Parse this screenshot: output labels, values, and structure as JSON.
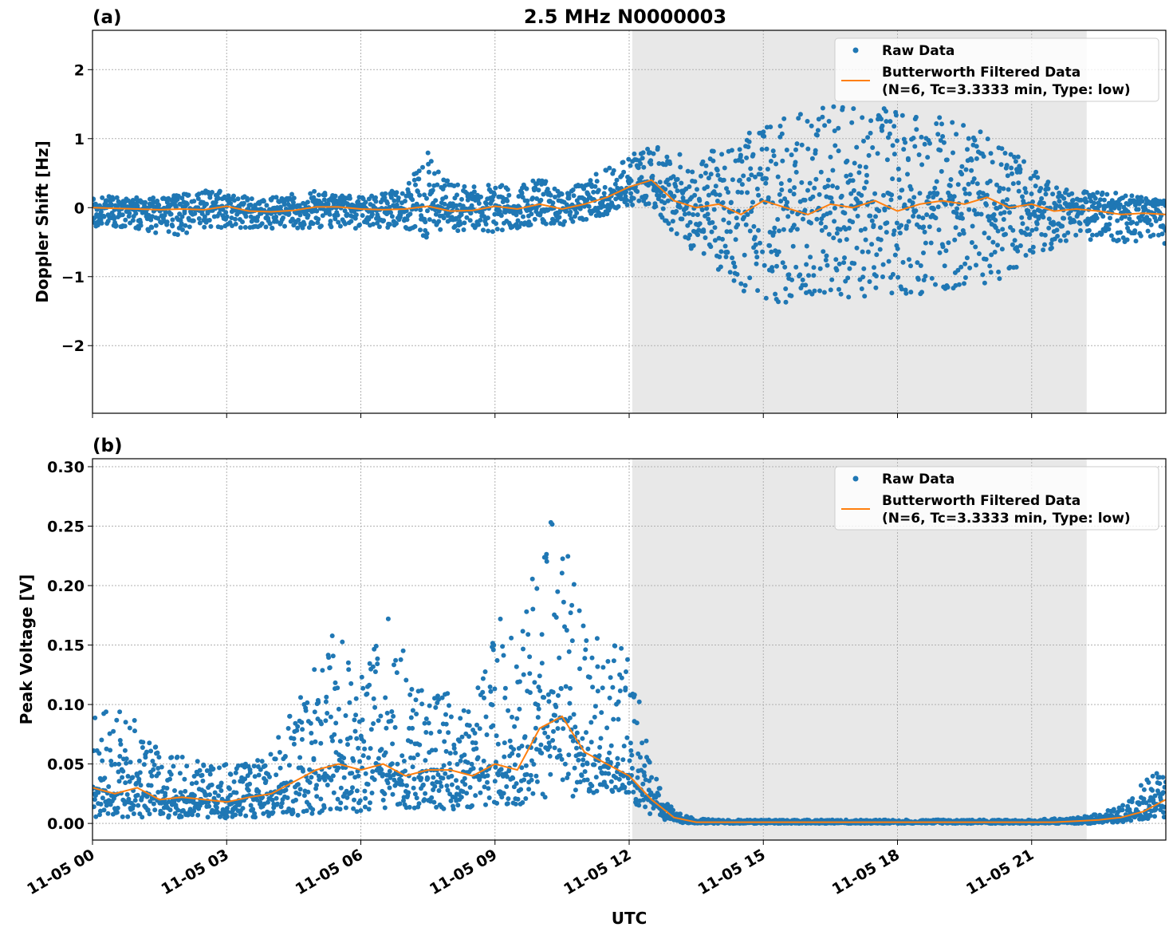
{
  "title": "2.5 MHz N0000003",
  "colors": {
    "raw": "#1f77b4",
    "filtered": "#ff7f0e",
    "shade": "#e8e8e8"
  },
  "chart_data": [
    {
      "panel_label": "(a)",
      "type": "scatter+line",
      "ylabel": "Doppler Shift [Hz]",
      "xlabel": "",
      "xlim_hours": [
        0,
        24
      ],
      "ylim": [
        -2.98,
        2.57
      ],
      "yticks": [
        -2,
        -1,
        0,
        1,
        2
      ],
      "ytick_labels": [
        "−2",
        "−1",
        "0",
        "1",
        "2"
      ],
      "grid": true,
      "shaded_span_hours": [
        12.07,
        22.23
      ],
      "legend": {
        "placement": "top-right",
        "entries": [
          "Raw Data",
          "Butterworth Filtered Data",
          "(N=6, Tc=3.3333 min, Type: low)"
        ]
      },
      "x_hours": [
        0,
        0.5,
        1,
        1.5,
        2,
        2.5,
        3,
        3.5,
        4,
        4.5,
        5,
        5.5,
        6,
        6.5,
        7,
        7.5,
        8,
        8.5,
        9,
        9.5,
        10,
        10.5,
        11,
        11.5,
        12,
        12.5,
        13,
        13.5,
        14,
        14.5,
        15,
        15.5,
        16,
        16.5,
        17,
        17.5,
        18,
        18.5,
        19,
        19.5,
        20,
        20.5,
        21,
        21.5,
        22,
        22.5,
        23,
        23.5,
        24
      ],
      "series": [
        {
          "name": "Butterworth Filtered Data",
          "kind": "line",
          "values": [
            0,
            -0.01,
            -0.02,
            -0.03,
            -0.02,
            -0.03,
            0.02,
            -0.05,
            -0.06,
            -0.04,
            0.01,
            0.01,
            -0.02,
            -0.03,
            -0.02,
            0.02,
            -0.05,
            -0.04,
            0.02,
            -0.02,
            0.05,
            -0.02,
            0.05,
            0.15,
            0.3,
            0.4,
            0.1,
            0.0,
            0.05,
            -0.1,
            0.1,
            0.0,
            -0.1,
            0.05,
            0.0,
            0.1,
            -0.05,
            0.05,
            0.1,
            0.05,
            0.15,
            0.0,
            0.05,
            -0.05,
            -0.02,
            -0.05,
            -0.1,
            -0.08,
            -0.1
          ]
        },
        {
          "name": "Raw Data",
          "kind": "scatter-envelope",
          "lower": [
            -0.3,
            -0.3,
            -0.3,
            -0.4,
            -0.4,
            -0.3,
            -0.3,
            -0.3,
            -0.3,
            -0.3,
            -0.3,
            -0.3,
            -0.3,
            -0.3,
            -0.3,
            -0.45,
            -0.35,
            -0.35,
            -0.35,
            -0.3,
            -0.25,
            -0.25,
            -0.2,
            -0.1,
            0.0,
            0.05,
            -0.4,
            -0.7,
            -0.9,
            -1.2,
            -1.3,
            -1.4,
            -1.4,
            -1.3,
            -1.3,
            -1.3,
            -1.4,
            -1.3,
            -1.2,
            -1.2,
            -1.1,
            -1.0,
            -0.8,
            -0.6,
            -0.4,
            -0.5,
            -0.5,
            -0.5,
            -0.6
          ],
          "upper": [
            0.2,
            0.15,
            0.15,
            0.15,
            0.2,
            0.25,
            0.25,
            0.15,
            0.15,
            0.2,
            0.25,
            0.2,
            0.15,
            0.2,
            0.3,
            0.8,
            0.35,
            0.3,
            0.35,
            0.3,
            0.45,
            0.2,
            0.4,
            0.6,
            0.75,
            0.9,
            0.8,
            0.7,
            0.9,
            1.1,
            1.2,
            1.3,
            1.4,
            1.5,
            1.5,
            1.5,
            1.4,
            1.4,
            1.3,
            1.2,
            1.1,
            1.0,
            0.6,
            0.3,
            0.25,
            0.25,
            0.2,
            0.15,
            0.1
          ]
        }
      ]
    },
    {
      "panel_label": "(b)",
      "type": "scatter+line",
      "ylabel": "Peak Voltage [V]",
      "xlabel": "UTC",
      "xlim_hours": [
        0,
        24
      ],
      "ylim": [
        -0.014,
        0.3067
      ],
      "yticks": [
        0,
        0.05,
        0.1,
        0.15,
        0.2,
        0.25,
        0.3
      ],
      "ytick_labels": [
        "0.00",
        "0.05",
        "0.10",
        "0.15",
        "0.20",
        "0.25",
        "0.30"
      ],
      "xticks_hours": [
        0,
        3,
        6,
        9,
        12,
        15,
        18,
        21
      ],
      "xtick_labels": [
        "11-05 00",
        "11-05 03",
        "11-05 06",
        "11-05 09",
        "11-05 12",
        "11-05 15",
        "11-05 18",
        "11-05 21"
      ],
      "grid": true,
      "shaded_span_hours": [
        12.07,
        22.23
      ],
      "legend": {
        "placement": "top-right",
        "entries": [
          "Raw Data",
          "Butterworth Filtered Data",
          "(N=6, Tc=3.3333 min, Type: low)"
        ]
      },
      "x_hours": [
        0,
        0.5,
        1,
        1.5,
        2,
        2.5,
        3,
        3.5,
        4,
        4.5,
        5,
        5.5,
        6,
        6.5,
        7,
        7.5,
        8,
        8.5,
        9,
        9.5,
        10,
        10.5,
        11,
        11.5,
        12,
        12.5,
        13,
        13.5,
        14,
        14.5,
        15,
        15.5,
        16,
        16.5,
        17,
        17.5,
        18,
        18.5,
        19,
        19.5,
        20,
        20.5,
        21,
        21.5,
        22,
        22.5,
        23,
        23.5,
        24
      ],
      "series": [
        {
          "name": "Butterworth Filtered Data",
          "kind": "line",
          "values": [
            0.03,
            0.025,
            0.03,
            0.02,
            0.022,
            0.02,
            0.018,
            0.022,
            0.025,
            0.035,
            0.045,
            0.05,
            0.045,
            0.05,
            0.04,
            0.045,
            0.045,
            0.04,
            0.05,
            0.045,
            0.08,
            0.09,
            0.06,
            0.05,
            0.04,
            0.02,
            0.005,
            0.001,
            0.001,
            0.001,
            0.001,
            0.001,
            0.001,
            0.001,
            0.001,
            0.001,
            0.001,
            0.001,
            0.001,
            0.001,
            0.001,
            0.001,
            0.001,
            0.001,
            0.002,
            0.003,
            0.005,
            0.01,
            0.02
          ]
        },
        {
          "name": "Raw Data",
          "kind": "scatter-envelope",
          "lower": [
            0.005,
            0.005,
            0.005,
            0.005,
            0.005,
            0.005,
            0.004,
            0.004,
            0.005,
            0.006,
            0.008,
            0.01,
            0.01,
            0.012,
            0.012,
            0.012,
            0.012,
            0.012,
            0.015,
            0.015,
            0.02,
            0.02,
            0.02,
            0.02,
            0.02,
            0.005,
            0.001,
            0.0,
            0.0,
            0.0,
            0.0,
            0.0,
            0.0,
            0.0,
            0.0,
            0.0,
            0.0,
            0.0,
            0.0,
            0.0,
            0.0,
            0.0,
            0.0,
            0.0,
            0.0,
            0.0,
            0.001,
            0.003,
            0.005
          ],
          "upper": [
            0.09,
            0.1,
            0.085,
            0.06,
            0.07,
            0.05,
            0.05,
            0.05,
            0.06,
            0.1,
            0.14,
            0.18,
            0.12,
            0.2,
            0.14,
            0.11,
            0.11,
            0.1,
            0.19,
            0.15,
            0.24,
            0.29,
            0.17,
            0.15,
            0.15,
            0.05,
            0.01,
            0.004,
            0.003,
            0.003,
            0.003,
            0.003,
            0.003,
            0.003,
            0.003,
            0.003,
            0.003,
            0.003,
            0.003,
            0.003,
            0.003,
            0.003,
            0.003,
            0.004,
            0.005,
            0.008,
            0.015,
            0.035,
            0.05
          ]
        }
      ]
    }
  ]
}
